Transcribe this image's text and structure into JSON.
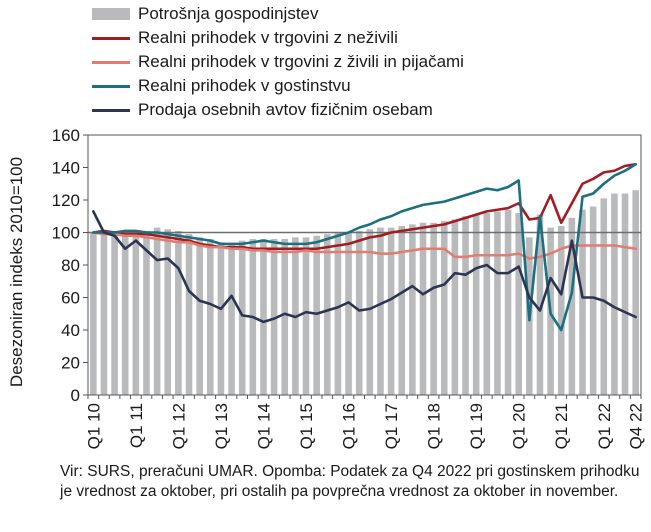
{
  "chart_data": {
    "type": "bar",
    "ylabel": "Desezoniran indeks 2010=100",
    "ylim": [
      0,
      160
    ],
    "yticks": [
      0,
      20,
      40,
      60,
      80,
      100,
      120,
      140,
      160
    ],
    "reference_line": 100,
    "grid": false,
    "legend_position": "top-left",
    "categories": [
      "Q1 10",
      "Q2 10",
      "Q3 10",
      "Q4 10",
      "Q1 11",
      "Q2 11",
      "Q3 11",
      "Q4 11",
      "Q1 12",
      "Q2 12",
      "Q3 12",
      "Q4 12",
      "Q1 13",
      "Q2 13",
      "Q3 13",
      "Q4 13",
      "Q1 14",
      "Q2 14",
      "Q3 14",
      "Q4 14",
      "Q1 15",
      "Q2 15",
      "Q3 15",
      "Q4 15",
      "Q1 16",
      "Q2 16",
      "Q3 16",
      "Q4 16",
      "Q1 17",
      "Q2 17",
      "Q3 17",
      "Q4 17",
      "Q1 18",
      "Q2 18",
      "Q3 18",
      "Q4 18",
      "Q1 19",
      "Q2 19",
      "Q3 19",
      "Q4 19",
      "Q1 20",
      "Q2 20",
      "Q3 20",
      "Q4 20",
      "Q1 21",
      "Q2 21",
      "Q3 21",
      "Q4 21",
      "Q1 22",
      "Q2 22",
      "Q3 22",
      "Q4 22"
    ],
    "x_tick_labels": [
      "Q1 10",
      "Q1 11",
      "Q1 12",
      "Q1 13",
      "Q1 14",
      "Q1 15",
      "Q1 16",
      "Q1 17",
      "Q1 18",
      "Q1 19",
      "Q1 20",
      "Q1 21",
      "Q1 22",
      "Q4 22"
    ],
    "series": [
      {
        "name": "Potrošnja gospodinjstev",
        "type": "bar",
        "color": "#b9babc",
        "values": [
          100,
          100,
          101,
          101,
          101,
          101,
          103,
          102,
          101,
          99,
          97,
          96,
          94,
          93,
          95,
          96,
          96,
          96,
          96,
          97,
          97,
          98,
          99,
          100,
          100,
          101,
          102,
          103,
          103,
          104,
          105,
          106,
          106,
          107,
          108,
          110,
          111,
          112,
          113,
          114,
          112,
          97,
          111,
          103,
          104,
          109,
          114,
          116,
          121,
          124,
          124,
          126
        ]
      },
      {
        "name": "Realni prihodek v trgovini z neživili",
        "type": "line",
        "color": "#a11d21",
        "values": [
          100,
          101,
          100,
          99,
          99,
          99,
          98,
          97,
          96,
          95,
          93,
          92,
          91,
          91,
          91,
          90,
          90,
          90,
          90,
          90,
          90,
          90,
          91,
          92,
          93,
          95,
          97,
          98,
          100,
          101,
          102,
          103,
          104,
          105,
          107,
          109,
          111,
          113,
          114,
          115,
          118,
          108,
          109,
          123,
          106,
          118,
          130,
          133,
          137,
          138,
          141,
          142
        ]
      },
      {
        "name": "Realni prihodek v trgovini z živili in pijačami",
        "type": "line",
        "color": "#e27b72",
        "values": [
          100,
          99,
          99,
          98,
          98,
          97,
          96,
          95,
          94,
          94,
          92,
          91,
          91,
          90,
          90,
          89,
          89,
          88,
          88,
          88,
          89,
          88,
          88,
          88,
          88,
          88,
          88,
          87,
          87,
          88,
          89,
          90,
          90,
          90,
          85,
          85,
          86,
          86,
          86,
          86,
          87,
          84,
          85,
          87,
          90,
          92,
          92,
          92,
          92,
          92,
          91,
          90
        ]
      },
      {
        "name": "Realni prihodek v gostinstvu",
        "type": "line",
        "color": "#1b6f80",
        "values": [
          100,
          100,
          100,
          101,
          101,
          100,
          100,
          99,
          98,
          97,
          96,
          95,
          93,
          93,
          93,
          94,
          95,
          94,
          93,
          93,
          93,
          94,
          96,
          98,
          100,
          103,
          105,
          108,
          110,
          113,
          115,
          117,
          118,
          119,
          121,
          123,
          125,
          127,
          126,
          128,
          132,
          46,
          110,
          50,
          40,
          63,
          122,
          124,
          130,
          135,
          138,
          142
        ]
      },
      {
        "name": "Prodaja osebnih avtov fizičnim osebam",
        "type": "line",
        "color": "#2b3553",
        "values": [
          113,
          100,
          98,
          90,
          95,
          89,
          83,
          84,
          78,
          64,
          58,
          56,
          53,
          61,
          49,
          48,
          45,
          47,
          50,
          48,
          51,
          50,
          52,
          54,
          57,
          52,
          53,
          56,
          59,
          63,
          67,
          62,
          66,
          68,
          75,
          74,
          78,
          80,
          75,
          75,
          79,
          60,
          52,
          72,
          62,
          95,
          60,
          60,
          58,
          54,
          51,
          48
        ]
      }
    ],
    "note": "Vir: SURS, preračuni UMAR. Opomba: Podatek za Q4 2022 pri gostinskem prihodku je vrednost za oktober, pri ostalih pa povprečna vrednost za oktober in november."
  }
}
